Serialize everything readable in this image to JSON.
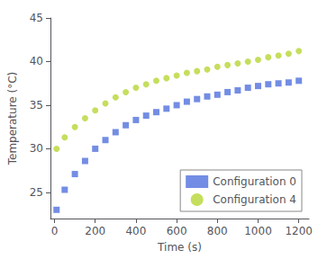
{
  "chart_data": {
    "type": "scatter",
    "xlabel": "Time (s)",
    "ylabel": "Temperature (°C)",
    "xlim": [
      -20,
      1250
    ],
    "ylim": [
      22,
      45
    ],
    "xticks": [
      0,
      200,
      400,
      600,
      800,
      1000,
      1200
    ],
    "yticks": [
      25,
      30,
      35,
      40,
      45
    ],
    "x": [
      10,
      50,
      100,
      150,
      200,
      250,
      300,
      350,
      400,
      450,
      500,
      550,
      600,
      650,
      700,
      750,
      800,
      850,
      900,
      950,
      1000,
      1050,
      1100,
      1150,
      1200
    ],
    "series": [
      {
        "name": "Configuration 0",
        "marker": "square",
        "values": [
          23.0,
          25.3,
          27.1,
          28.6,
          30.0,
          31.0,
          31.9,
          32.7,
          33.3,
          33.8,
          34.2,
          34.6,
          35.0,
          35.4,
          35.7,
          36.0,
          36.2,
          36.5,
          36.7,
          37.0,
          37.2,
          37.4,
          37.5,
          37.6,
          37.8
        ]
      },
      {
        "name": "Configuration 4",
        "marker": "circle",
        "values": [
          30.0,
          31.3,
          32.5,
          33.5,
          34.4,
          35.2,
          35.9,
          36.5,
          37.0,
          37.4,
          37.8,
          38.1,
          38.4,
          38.7,
          38.9,
          39.1,
          39.4,
          39.6,
          39.8,
          40.0,
          40.2,
          40.5,
          40.7,
          40.9,
          41.2
        ]
      }
    ],
    "legend": "lower right",
    "grid": false
  }
}
